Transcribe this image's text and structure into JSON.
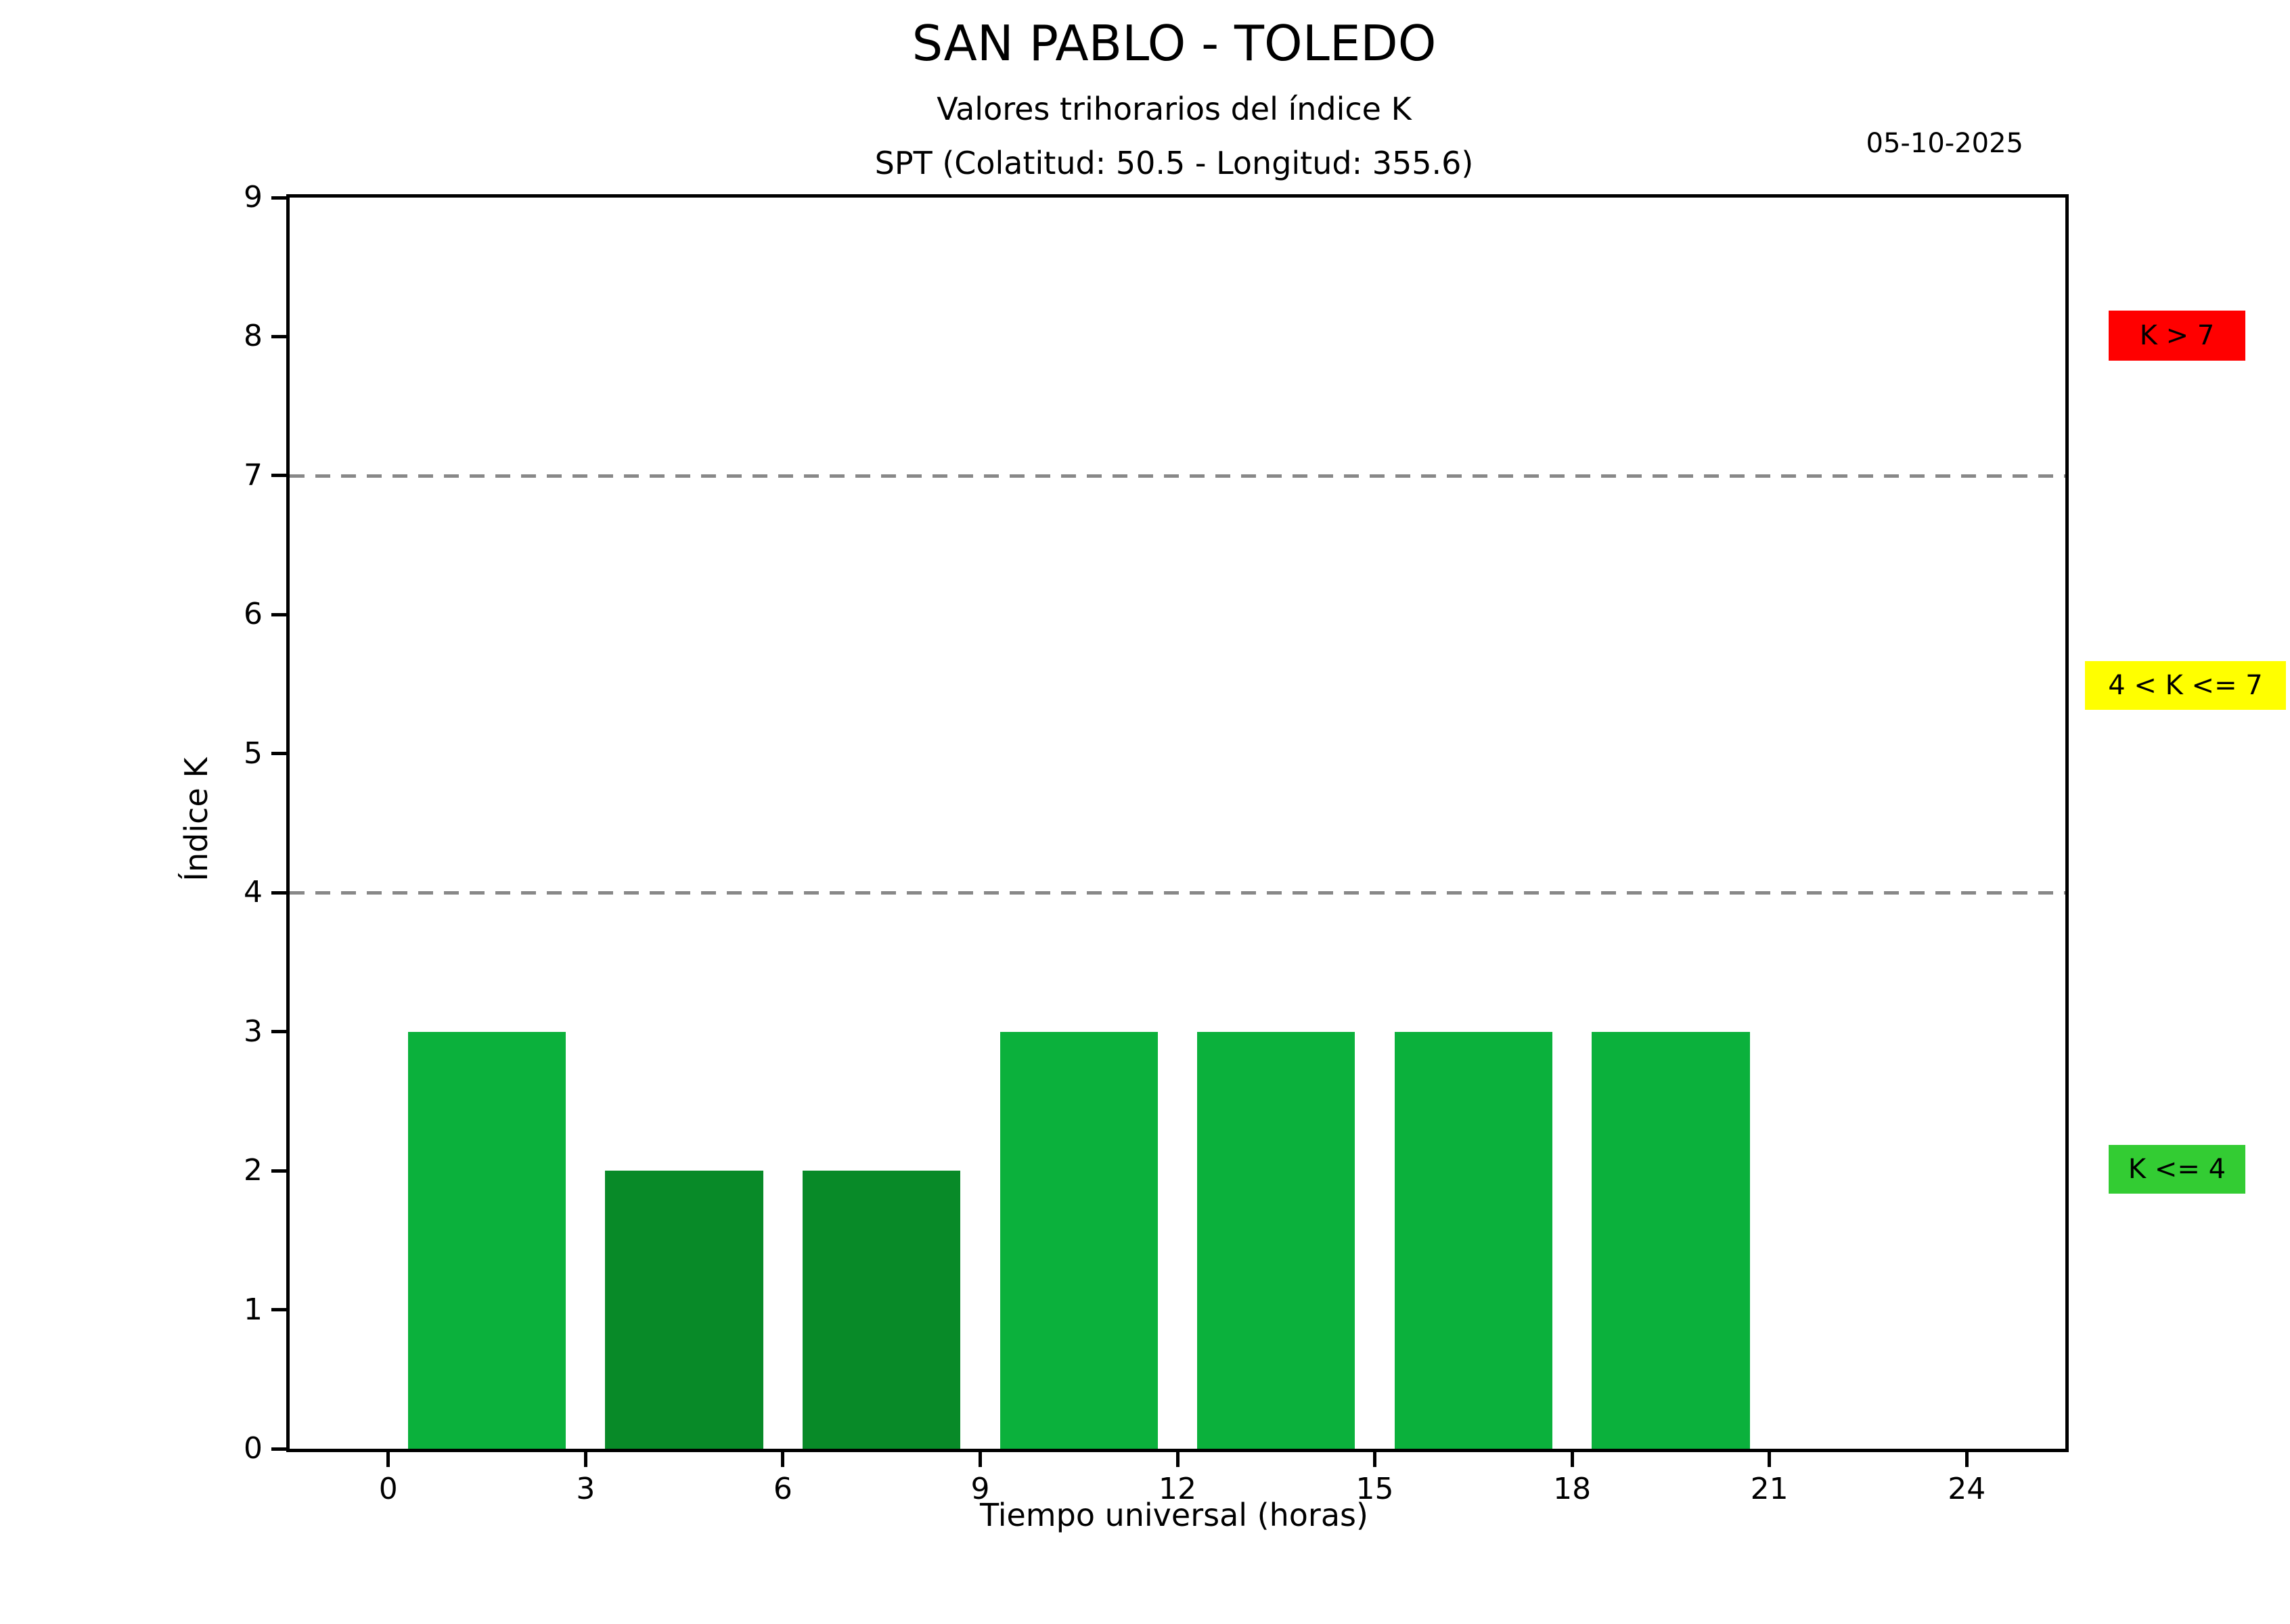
{
  "header": {
    "title": "SAN PABLO - TOLEDO",
    "subtitle": "Valores trihorarios del índice K",
    "station_line": "SPT (Colatitud: 50.5 - Longitud: 355.6)",
    "date": "05-10-2025"
  },
  "chart_data": {
    "type": "bar",
    "title": "SAN PABLO - TOLEDO",
    "subtitle": "Valores trihorarios del índice K",
    "station": "SPT (Colatitud: 50.5 - Longitud: 355.6)",
    "date": "05-10-2025",
    "xlabel": "Tiempo universal (horas)",
    "ylabel": "Índice K",
    "xlim": [
      -1.5,
      25.5
    ],
    "ylim": [
      0,
      9
    ],
    "x_ticks": [
      0,
      3,
      6,
      9,
      12,
      15,
      18,
      21,
      24
    ],
    "y_ticks": [
      0,
      1,
      2,
      3,
      4,
      5,
      6,
      7,
      8,
      9
    ],
    "grid": false,
    "threshold_lines": [
      {
        "k": 4,
        "style": "dashed",
        "color": "#888888"
      },
      {
        "k": 7,
        "style": "dashed",
        "color": "#888888"
      }
    ],
    "bar_width_hours": 2.4,
    "bars": [
      {
        "interval": "00-03",
        "center_hour": 1.5,
        "k": 3,
        "color": "#0bb13c"
      },
      {
        "interval": "03-06",
        "center_hour": 4.5,
        "k": 2,
        "color": "#088a28"
      },
      {
        "interval": "06-09",
        "center_hour": 7.5,
        "k": 2,
        "color": "#088a28"
      },
      {
        "interval": "09-12",
        "center_hour": 10.5,
        "k": 3,
        "color": "#0bb13c"
      },
      {
        "interval": "12-15",
        "center_hour": 13.5,
        "k": 3,
        "color": "#0bb13c"
      },
      {
        "interval": "15-18",
        "center_hour": 16.5,
        "k": 3,
        "color": "#0bb13c"
      },
      {
        "interval": "18-21",
        "center_hour": 19.5,
        "k": 3,
        "color": "#0bb13c"
      },
      {
        "interval": "21-24",
        "center_hour": 22.5,
        "k": null,
        "color": null
      }
    ],
    "legend": [
      {
        "id": "red",
        "label": "K > 7",
        "color": "#ff0000"
      },
      {
        "id": "yellow",
        "label": "4 < K <= 7",
        "color": "#ffff00"
      },
      {
        "id": "green",
        "label": "K <= 4",
        "color": "#33cc33"
      }
    ]
  }
}
